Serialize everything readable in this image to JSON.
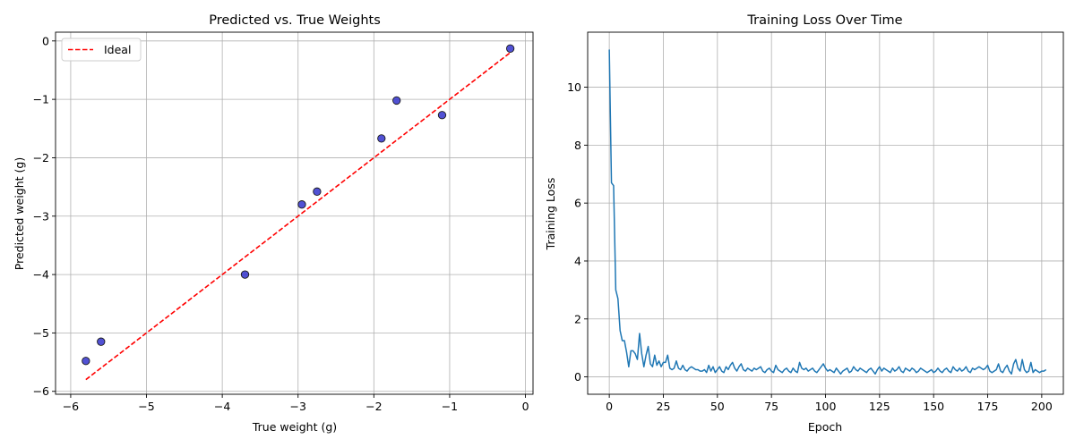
{
  "chart_data": [
    {
      "type": "scatter",
      "title": "Predicted vs. True Weights",
      "xlabel": "True weight (g)",
      "ylabel": "Predicted weight (g)",
      "xlim": [
        -6.2,
        0.1
      ],
      "ylim": [
        -6.05,
        0.15
      ],
      "xticks": [
        -6,
        -5,
        -4,
        -3,
        -2,
        -1,
        0
      ],
      "yticks": [
        -6,
        -5,
        -4,
        -3,
        -2,
        -1,
        0
      ],
      "grid": true,
      "legend": {
        "placement": "top-left",
        "entries": [
          "Ideal"
        ]
      },
      "points": [
        {
          "x": -5.8,
          "y": -5.48
        },
        {
          "x": -5.6,
          "y": -5.15
        },
        {
          "x": -3.7,
          "y": -4.0
        },
        {
          "x": -2.95,
          "y": -2.8
        },
        {
          "x": -2.75,
          "y": -2.58
        },
        {
          "x": -1.9,
          "y": -1.67
        },
        {
          "x": -1.7,
          "y": -1.02
        },
        {
          "x": -1.1,
          "y": -1.27
        },
        {
          "x": -0.2,
          "y": -0.13
        }
      ],
      "marker_color": "#3333cc",
      "ideal_line": {
        "name": "Ideal",
        "x": [
          -5.8,
          -0.2
        ],
        "y": [
          -5.8,
          -0.2
        ],
        "color": "#ff0000"
      }
    },
    {
      "type": "line",
      "title": "Training Loss Over Time",
      "xlabel": "Epoch",
      "ylabel": "Training Loss",
      "xlim": [
        -10,
        210
      ],
      "ylim": [
        -0.6,
        11.9
      ],
      "xticks": [
        0,
        25,
        50,
        75,
        100,
        125,
        150,
        175,
        200
      ],
      "yticks": [
        0,
        2,
        4,
        6,
        8,
        10
      ],
      "grid": true,
      "line_color": "#1f77b4",
      "series": [
        {
          "values": [
            11.3,
            6.7,
            6.6,
            3.0,
            2.7,
            1.6,
            1.25,
            1.25,
            0.85,
            0.35,
            0.9,
            0.9,
            0.8,
            0.6,
            1.5,
            0.8,
            0.35,
            0.75,
            1.05,
            0.45,
            0.35,
            0.75,
            0.4,
            0.55,
            0.35,
            0.5,
            0.5,
            0.75,
            0.3,
            0.25,
            0.3,
            0.55,
            0.3,
            0.25,
            0.4,
            0.25,
            0.2,
            0.3,
            0.35,
            0.3,
            0.25,
            0.25,
            0.2,
            0.2,
            0.25,
            0.15,
            0.4,
            0.2,
            0.35,
            0.15,
            0.25,
            0.35,
            0.2,
            0.15,
            0.35,
            0.25,
            0.4,
            0.5,
            0.3,
            0.2,
            0.35,
            0.45,
            0.25,
            0.2,
            0.3,
            0.25,
            0.2,
            0.3,
            0.25,
            0.3,
            0.35,
            0.2,
            0.15,
            0.25,
            0.3,
            0.2,
            0.15,
            0.4,
            0.25,
            0.2,
            0.15,
            0.25,
            0.3,
            0.2,
            0.15,
            0.3,
            0.2,
            0.15,
            0.5,
            0.3,
            0.25,
            0.3,
            0.2,
            0.25,
            0.3,
            0.2,
            0.15,
            0.25,
            0.35,
            0.45,
            0.3,
            0.2,
            0.25,
            0.2,
            0.15,
            0.3,
            0.2,
            0.1,
            0.2,
            0.25,
            0.3,
            0.15,
            0.2,
            0.35,
            0.25,
            0.2,
            0.3,
            0.25,
            0.2,
            0.15,
            0.25,
            0.3,
            0.2,
            0.1,
            0.25,
            0.35,
            0.2,
            0.3,
            0.25,
            0.2,
            0.15,
            0.3,
            0.2,
            0.25,
            0.35,
            0.2,
            0.15,
            0.3,
            0.25,
            0.2,
            0.3,
            0.25,
            0.15,
            0.2,
            0.3,
            0.25,
            0.2,
            0.15,
            0.2,
            0.25,
            0.15,
            0.2,
            0.3,
            0.2,
            0.15,
            0.25,
            0.3,
            0.2,
            0.15,
            0.35,
            0.25,
            0.2,
            0.3,
            0.2,
            0.25,
            0.35,
            0.2,
            0.15,
            0.3,
            0.25,
            0.3,
            0.35,
            0.3,
            0.25,
            0.3,
            0.4,
            0.2,
            0.15,
            0.2,
            0.25,
            0.45,
            0.2,
            0.15,
            0.3,
            0.4,
            0.2,
            0.1,
            0.45,
            0.6,
            0.3,
            0.2,
            0.6,
            0.25,
            0.15,
            0.2,
            0.5,
            0.15,
            0.25,
            0.2,
            0.15,
            0.2,
            0.2,
            0.25
          ]
        }
      ]
    }
  ]
}
